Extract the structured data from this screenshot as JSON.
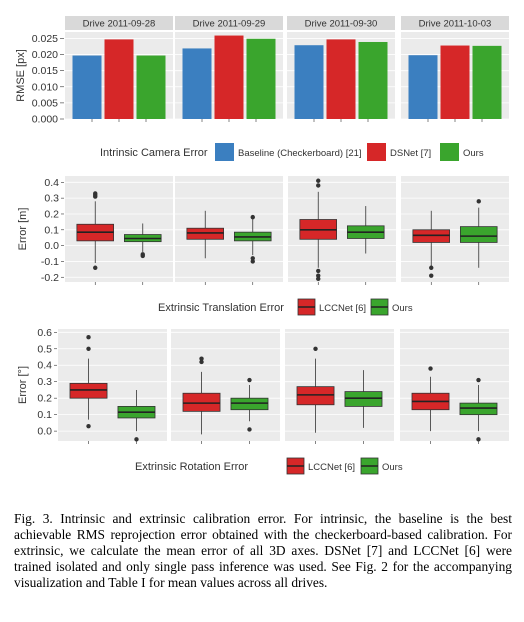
{
  "caption": "Fig. 3. Intrinsic and extrinsic calibration error. For intrinsic, the baseline is the best achievable RMS reprojection error obtained with the checkerboard-based calibration. For extrinsic, we calculate the mean error of all 3D axes. DSNet [7] and LCCNet [6] were trained isolated and only single pass inference was used. See Fig. 2 for the accompanying visualization and Table I for mean values across all drives.",
  "colors": {
    "baseline": "#3b7fc0",
    "dsnet": "#d62728",
    "lccnet": "#d62728",
    "ours": "#3aa52d",
    "panel_bg": "#ebebeb",
    "strip_bg": "#d9d9d9",
    "grid": "#ffffff"
  },
  "chart_data": [
    {
      "type": "bar",
      "facets": [
        "Drive 2011-09-28",
        "Drive 2011-09-29",
        "Drive 2011-09-30",
        "Drive 2011-10-03"
      ],
      "ylabel": "RMSE [px]",
      "ylim": [
        0,
        0.027
      ],
      "yticks": [
        "0.000",
        "0.005",
        "0.010",
        "0.015",
        "0.020",
        "0.025"
      ],
      "legend_title": "Intrinsic Camera Error",
      "series": [
        {
          "name": "Baseline (Checkerboard) [21]",
          "color": "#3b7fc0",
          "values": [
            0.0197,
            0.0219,
            0.0229,
            0.0198
          ]
        },
        {
          "name": "DSNet [7]",
          "color": "#d62728",
          "values": [
            0.0247,
            0.0259,
            0.0247,
            0.0228
          ]
        },
        {
          "name": "Ours",
          "color": "#3aa52d",
          "values": [
            0.0197,
            0.0249,
            0.0239,
            0.0227
          ]
        }
      ]
    },
    {
      "type": "box",
      "facets": [
        "Drive 2011-09-28",
        "Drive 2011-09-29",
        "Drive 2011-09-30",
        "Drive 2011-10-03"
      ],
      "ylabel": "Error [m]",
      "ylim": [
        -0.23,
        0.44
      ],
      "yticks": [
        "-0.2",
        "-0.1",
        "0.0",
        "0.1",
        "0.2",
        "0.3",
        "0.4"
      ],
      "ytick_values": [
        -0.2,
        -0.1,
        0.0,
        0.1,
        0.2,
        0.3,
        0.4
      ],
      "legend_title": "Extrinsic Translation Error",
      "series": [
        {
          "name": "LCCNet [6]",
          "color": "#d62728",
          "boxes": [
            {
              "q1": 0.03,
              "median": 0.085,
              "q3": 0.135,
              "whisker_low": -0.11,
              "whisker_high": 0.28,
              "outliers": [
                0.32,
                0.33,
                0.31,
                -0.14
              ]
            },
            {
              "q1": 0.04,
              "median": 0.08,
              "q3": 0.11,
              "whisker_low": -0.08,
              "whisker_high": 0.22,
              "outliers": []
            },
            {
              "q1": 0.04,
              "median": 0.1,
              "q3": 0.165,
              "whisker_low": -0.14,
              "whisker_high": 0.34,
              "outliers": [
                0.38,
                0.41,
                -0.16,
                -0.19,
                -0.21
              ]
            },
            {
              "q1": 0.02,
              "median": 0.065,
              "q3": 0.1,
              "whisker_low": -0.13,
              "whisker_high": 0.22,
              "outliers": [
                -0.14,
                -0.19
              ]
            }
          ]
        },
        {
          "name": "Ours",
          "color": "#3aa52d",
          "boxes": [
            {
              "q1": 0.025,
              "median": 0.045,
              "q3": 0.07,
              "whisker_low": -0.04,
              "whisker_high": 0.14,
              "outliers": [
                -0.055,
                -0.065
              ]
            },
            {
              "q1": 0.03,
              "median": 0.055,
              "q3": 0.085,
              "whisker_low": -0.06,
              "whisker_high": 0.17,
              "outliers": [
                0.18,
                -0.08,
                -0.1
              ]
            },
            {
              "q1": 0.045,
              "median": 0.085,
              "q3": 0.125,
              "whisker_low": -0.05,
              "whisker_high": 0.25,
              "outliers": []
            },
            {
              "q1": 0.02,
              "median": 0.06,
              "q3": 0.12,
              "whisker_low": -0.14,
              "whisker_high": 0.24,
              "outliers": [
                0.28
              ]
            }
          ]
        }
      ]
    },
    {
      "type": "box",
      "facets": [
        "Drive 2011-09-28",
        "Drive 2011-09-29",
        "Drive 2011-09-30",
        "Drive 2011-10-03"
      ],
      "ylabel": "Error [°]",
      "ylim": [
        -0.06,
        0.62
      ],
      "yticks": [
        "0.0",
        "0.1",
        "0.2",
        "0.3",
        "0.4",
        "0.5",
        "0.6"
      ],
      "ytick_values": [
        0.0,
        0.1,
        0.2,
        0.3,
        0.4,
        0.5,
        0.6
      ],
      "legend_title": "Extrinsic Rotation Error",
      "series": [
        {
          "name": "LCCNet [6]",
          "color": "#d62728",
          "boxes": [
            {
              "q1": 0.2,
              "median": 0.25,
              "q3": 0.29,
              "whisker_low": 0.07,
              "whisker_high": 0.44,
              "outliers": [
                0.57,
                0.5,
                0.03
              ]
            },
            {
              "q1": 0.12,
              "median": 0.17,
              "q3": 0.23,
              "whisker_low": -0.02,
              "whisker_high": 0.36,
              "outliers": [
                0.42,
                0.44
              ]
            },
            {
              "q1": 0.16,
              "median": 0.22,
              "q3": 0.27,
              "whisker_low": -0.01,
              "whisker_high": 0.44,
              "outliers": [
                0.5
              ]
            },
            {
              "q1": 0.13,
              "median": 0.18,
              "q3": 0.23,
              "whisker_low": 0.0,
              "whisker_high": 0.33,
              "outliers": [
                0.38
              ]
            }
          ]
        },
        {
          "name": "Ours",
          "color": "#3aa52d",
          "boxes": [
            {
              "q1": 0.08,
              "median": 0.115,
              "q3": 0.15,
              "whisker_low": 0.0,
              "whisker_high": 0.25,
              "outliers": [
                -0.05
              ]
            },
            {
              "q1": 0.13,
              "median": 0.17,
              "q3": 0.2,
              "whisker_low": 0.06,
              "whisker_high": 0.28,
              "outliers": [
                0.31,
                0.01
              ]
            },
            {
              "q1": 0.15,
              "median": 0.2,
              "q3": 0.24,
              "whisker_low": 0.02,
              "whisker_high": 0.37,
              "outliers": []
            },
            {
              "q1": 0.1,
              "median": 0.14,
              "q3": 0.17,
              "whisker_low": 0.0,
              "whisker_high": 0.28,
              "outliers": [
                0.31,
                -0.05
              ]
            }
          ]
        }
      ]
    }
  ]
}
